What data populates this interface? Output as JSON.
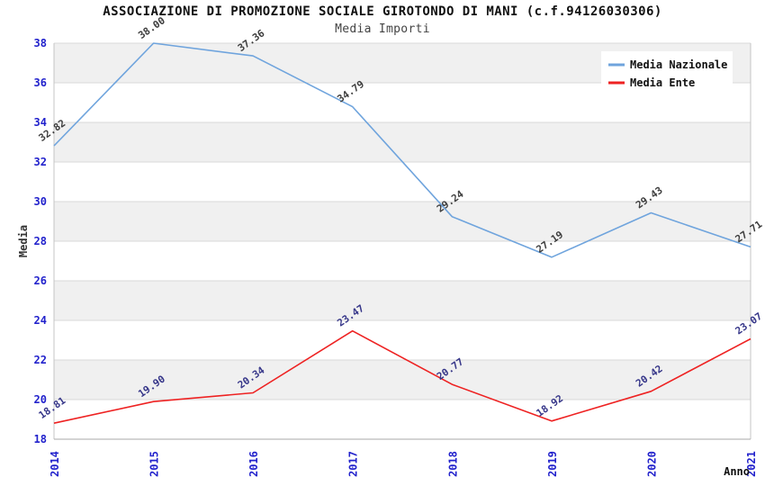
{
  "header": {
    "title": "ASSOCIAZIONE DI PROMOZIONE SOCIALE GIROTONDO DI MANI (c.f.94126030306)",
    "subtitle": "Media Importi"
  },
  "chart_data": {
    "type": "line",
    "title": "ASSOCIAZIONE DI PROMOZIONE SOCIALE GIROTONDO DI MANI (c.f.94126030306)",
    "subtitle": "Media Importi",
    "xlabel": "Anno",
    "ylabel": "Media",
    "x": [
      "2014",
      "2015",
      "2016",
      "2017",
      "2018",
      "2019",
      "2020",
      "2021"
    ],
    "series": [
      {
        "name": "Media Nazionale",
        "color": "#6fa4dd",
        "label_color": "#3d3d3d",
        "values": [
          32.82,
          38.0,
          37.36,
          34.79,
          29.24,
          27.19,
          29.43,
          27.71
        ]
      },
      {
        "name": "Media Ente",
        "color": "#ee2222",
        "label_color": "#363689",
        "values": [
          18.81,
          19.9,
          20.34,
          23.47,
          20.77,
          18.92,
          20.42,
          23.07
        ]
      }
    ],
    "ylim": [
      18,
      38
    ],
    "ytick_step": 2,
    "grid": true,
    "band_colors": [
      "#f0f0f0",
      "#ffffff"
    ],
    "tick_label_color": "#2222cc",
    "gridline_color": "#d8d8d8",
    "spine_color": "#c4c4c4",
    "legend_position": "top-right",
    "legend": {
      "items": [
        "Media Nazionale",
        "Media Ente"
      ]
    }
  }
}
